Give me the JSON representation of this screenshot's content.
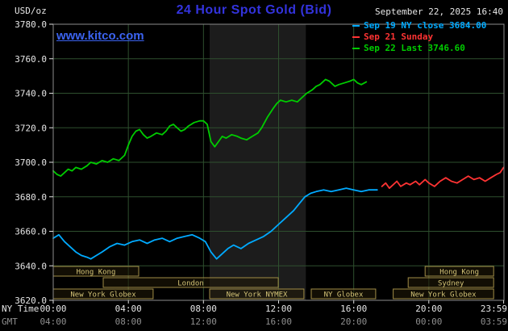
{
  "header": {
    "units": "USD/oz",
    "title": "24 Hour Spot Gold (Bid)",
    "datetime": "September 22, 2025 16:40",
    "watermark": "www.kitco.com"
  },
  "legend": [
    {
      "label": "Sep 19 NY close 3684.00",
      "color": "#00aaff"
    },
    {
      "label": "Sep 21 Sunday",
      "color": "#ff3333"
    },
    {
      "label": "Sep 22 Last 3746.60",
      "color": "#00cc00"
    }
  ],
  "axis_labels": {
    "ny": "NY Time",
    "gmt": "GMT"
  },
  "sessions": [
    {
      "label": "Hong Kong",
      "row": 0,
      "start": 0,
      "end": 4.55
    },
    {
      "label": "Hong Kong",
      "row": 0,
      "start": 19.8,
      "end": 23.45
    },
    {
      "label": "London",
      "row": 1,
      "start": 2.66,
      "end": 11.98
    },
    {
      "label": "Sydney",
      "row": 1,
      "start": 18.9,
      "end": 23.45
    },
    {
      "label": "New York Globex",
      "row": 2,
      "start": 0,
      "end": 5.32
    },
    {
      "label": "New York NYMEX",
      "row": 2,
      "start": 8.33,
      "end": 13.35
    },
    {
      "label": "NY Globex",
      "row": 2,
      "start": 13.74,
      "end": 17.17
    },
    {
      "label": "New York Globex",
      "row": 2,
      "start": 18.1,
      "end": 23.45
    }
  ],
  "chart_data": {
    "type": "line",
    "title": "24 Hour Spot Gold (Bid)",
    "xlabel": "NY Time / GMT",
    "ylabel": "USD/oz",
    "xlim": [
      0,
      24
    ],
    "ylim": [
      3620,
      3780
    ],
    "grid": true,
    "highlight_band_hours": [
      8.33,
      13.45
    ],
    "x_ticks": [
      {
        "hour": 0,
        "ny": "00:00",
        "gmt": "04:00"
      },
      {
        "hour": 4,
        "ny": "04:00",
        "gmt": "08:00"
      },
      {
        "hour": 8,
        "ny": "08:00",
        "gmt": "12:00"
      },
      {
        "hour": 12,
        "ny": "12:00",
        "gmt": "16:00"
      },
      {
        "hour": 16,
        "ny": "16:00",
        "gmt": "20:00"
      },
      {
        "hour": 20,
        "ny": "20:00",
        "gmt": "00:00"
      },
      {
        "hour": 23.983,
        "ny": "23:59",
        "gmt": "03:59"
      }
    ],
    "y_ticks": [
      {
        "value": 3780,
        "label": "3780.0"
      },
      {
        "value": 3760,
        "label": "3760.0"
      },
      {
        "value": 3740,
        "label": "3740.0"
      },
      {
        "value": 3720,
        "label": "3720.0"
      },
      {
        "value": 3700,
        "label": "3700.0"
      },
      {
        "value": 3680,
        "label": "3680.0"
      },
      {
        "value": 3660,
        "label": "3660.0"
      },
      {
        "value": 3640,
        "label": "3640.0"
      },
      {
        "value": 3620,
        "label": "3620.0"
      }
    ],
    "series": [
      {
        "name": "Sep 19 NY close 3684.00",
        "color": "#00aaff",
        "points": [
          [
            0.0,
            3656
          ],
          [
            0.3,
            3658
          ],
          [
            0.6,
            3654
          ],
          [
            0.9,
            3651
          ],
          [
            1.2,
            3648
          ],
          [
            1.5,
            3646
          ],
          [
            1.8,
            3645
          ],
          [
            2.0,
            3644
          ],
          [
            2.3,
            3646
          ],
          [
            2.6,
            3648
          ],
          [
            3.0,
            3651
          ],
          [
            3.4,
            3653
          ],
          [
            3.8,
            3652
          ],
          [
            4.2,
            3654
          ],
          [
            4.6,
            3655
          ],
          [
            5.0,
            3653
          ],
          [
            5.4,
            3655
          ],
          [
            5.8,
            3656
          ],
          [
            6.2,
            3654
          ],
          [
            6.6,
            3656
          ],
          [
            7.0,
            3657
          ],
          [
            7.4,
            3658
          ],
          [
            7.8,
            3656
          ],
          [
            8.1,
            3654
          ],
          [
            8.4,
            3648
          ],
          [
            8.7,
            3644
          ],
          [
            9.0,
            3647
          ],
          [
            9.3,
            3650
          ],
          [
            9.6,
            3652
          ],
          [
            10.0,
            3650
          ],
          [
            10.4,
            3653
          ],
          [
            10.8,
            3655
          ],
          [
            11.2,
            3657
          ],
          [
            11.6,
            3660
          ],
          [
            12.0,
            3664
          ],
          [
            12.4,
            3668
          ],
          [
            12.8,
            3672
          ],
          [
            13.1,
            3676
          ],
          [
            13.4,
            3680
          ],
          [
            13.7,
            3682
          ],
          [
            14.0,
            3683
          ],
          [
            14.4,
            3684
          ],
          [
            14.8,
            3683
          ],
          [
            15.2,
            3684
          ],
          [
            15.6,
            3685
          ],
          [
            16.0,
            3684
          ],
          [
            16.4,
            3683
          ],
          [
            16.8,
            3684
          ],
          [
            17.25,
            3684
          ]
        ]
      },
      {
        "name": "Sep 21 Sunday",
        "color": "#ff3333",
        "points": [
          [
            17.5,
            3686
          ],
          [
            17.7,
            3688
          ],
          [
            17.9,
            3685
          ],
          [
            18.1,
            3687
          ],
          [
            18.3,
            3689
          ],
          [
            18.5,
            3686
          ],
          [
            18.8,
            3688
          ],
          [
            19.0,
            3687
          ],
          [
            19.3,
            3689
          ],
          [
            19.5,
            3687
          ],
          [
            19.8,
            3690
          ],
          [
            20.0,
            3688
          ],
          [
            20.3,
            3686
          ],
          [
            20.6,
            3689
          ],
          [
            20.9,
            3691
          ],
          [
            21.2,
            3689
          ],
          [
            21.5,
            3688
          ],
          [
            21.8,
            3690
          ],
          [
            22.1,
            3692
          ],
          [
            22.4,
            3690
          ],
          [
            22.7,
            3691
          ],
          [
            23.0,
            3689
          ],
          [
            23.3,
            3691
          ],
          [
            23.6,
            3693
          ],
          [
            23.8,
            3694
          ],
          [
            23.98,
            3697
          ]
        ]
      },
      {
        "name": "Sep 22 Last 3746.60",
        "color": "#00cc00",
        "points": [
          [
            0.0,
            3695
          ],
          [
            0.2,
            3693
          ],
          [
            0.4,
            3692
          ],
          [
            0.6,
            3694
          ],
          [
            0.8,
            3696
          ],
          [
            1.0,
            3695
          ],
          [
            1.2,
            3697
          ],
          [
            1.5,
            3696
          ],
          [
            1.8,
            3698
          ],
          [
            2.0,
            3700
          ],
          [
            2.3,
            3699
          ],
          [
            2.6,
            3701
          ],
          [
            2.9,
            3700
          ],
          [
            3.2,
            3702
          ],
          [
            3.5,
            3701
          ],
          [
            3.8,
            3704
          ],
          [
            4.0,
            3710
          ],
          [
            4.2,
            3715
          ],
          [
            4.4,
            3718
          ],
          [
            4.6,
            3719
          ],
          [
            4.8,
            3716
          ],
          [
            5.0,
            3714
          ],
          [
            5.2,
            3715
          ],
          [
            5.5,
            3717
          ],
          [
            5.8,
            3716
          ],
          [
            6.0,
            3718
          ],
          [
            6.2,
            3721
          ],
          [
            6.4,
            3722
          ],
          [
            6.6,
            3720
          ],
          [
            6.8,
            3718
          ],
          [
            7.0,
            3719
          ],
          [
            7.2,
            3721
          ],
          [
            7.5,
            3723
          ],
          [
            7.8,
            3724
          ],
          [
            8.0,
            3724
          ],
          [
            8.2,
            3722
          ],
          [
            8.4,
            3712
          ],
          [
            8.6,
            3709
          ],
          [
            8.8,
            3712
          ],
          [
            9.0,
            3715
          ],
          [
            9.2,
            3714
          ],
          [
            9.5,
            3716
          ],
          [
            9.8,
            3715
          ],
          [
            10.0,
            3714
          ],
          [
            10.3,
            3713
          ],
          [
            10.6,
            3715
          ],
          [
            10.9,
            3717
          ],
          [
            11.1,
            3720
          ],
          [
            11.4,
            3726
          ],
          [
            11.7,
            3731
          ],
          [
            11.9,
            3734
          ],
          [
            12.1,
            3736
          ],
          [
            12.4,
            3735
          ],
          [
            12.7,
            3736
          ],
          [
            13.0,
            3735
          ],
          [
            13.2,
            3737
          ],
          [
            13.5,
            3740
          ],
          [
            13.8,
            3742
          ],
          [
            14.0,
            3744
          ],
          [
            14.2,
            3745
          ],
          [
            14.5,
            3748
          ],
          [
            14.7,
            3747
          ],
          [
            15.0,
            3744
          ],
          [
            15.2,
            3745
          ],
          [
            15.5,
            3746
          ],
          [
            15.8,
            3747
          ],
          [
            16.0,
            3748
          ],
          [
            16.2,
            3746
          ],
          [
            16.4,
            3745
          ],
          [
            16.67,
            3746.6
          ]
        ]
      }
    ]
  }
}
